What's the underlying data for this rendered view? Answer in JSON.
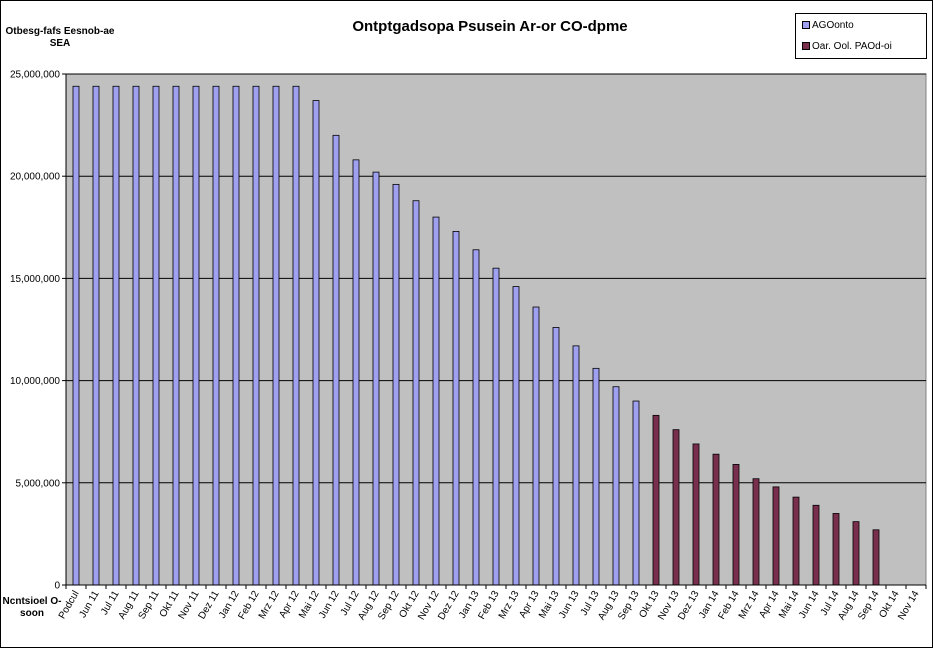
{
  "chart_data": {
    "type": "bar",
    "title": "Ontptgadsopa Psusein Ar-or CO-dpme",
    "ylabel": "Otbesg-fafs Eesnob-ae SEA",
    "xlabel": "Ncntsioel O-soon",
    "ylim": [
      0,
      25000000
    ],
    "yticks": [
      0,
      5000000,
      10000000,
      15000000,
      20000000,
      25000000
    ],
    "ytick_labels": [
      "0",
      "5,000,000",
      "10,000,000",
      "15,000,000",
      "20,000,000",
      "25,000,000"
    ],
    "grid": true,
    "legend_position": "top-right",
    "categories": [
      "Podcul",
      "Jun 11",
      "Jul 11",
      "Aug 11",
      "Sep 11",
      "Okt 11",
      "Nov 11",
      "Dez 11",
      "Jan 12",
      "Feb 12",
      "Mrz 12",
      "Apr 12",
      "Mai 12",
      "Jun 12",
      "Jul 12",
      "Aug 12",
      "Sep 12",
      "Okt 12",
      "Nov 12",
      "Dez 12",
      "Jan 13",
      "Feb 13",
      "Mrz 13",
      "Apr 13",
      "Mai 13",
      "Jun 13",
      "Jul 13",
      "Aug 13",
      "Sep 13",
      "Okt 13",
      "Nov 13",
      "Dez 13",
      "Jan 14",
      "Feb 14",
      "Mrz 14",
      "Apr 14",
      "Mai 14",
      "Jun 14",
      "Jul 14",
      "Aug 14",
      "Sep 14",
      "Okt 14",
      "Nov 14"
    ],
    "series": [
      {
        "name": "AGOonto",
        "color": "#a0a0f0",
        "values": [
          24400000,
          24400000,
          24400000,
          24400000,
          24400000,
          24400000,
          24400000,
          24400000,
          24400000,
          24400000,
          24400000,
          24400000,
          23700000,
          22000000,
          20800000,
          20200000,
          19600000,
          18800000,
          18000000,
          17300000,
          16400000,
          15500000,
          14600000,
          13600000,
          12600000,
          11700000,
          10600000,
          9700000,
          9000000,
          null,
          null,
          null,
          null,
          null,
          null,
          null,
          null,
          null,
          null,
          null,
          null,
          null,
          null
        ]
      },
      {
        "name": "Oar. Ool. PAOd-oi",
        "color": "#7a2e4e",
        "values": [
          null,
          null,
          null,
          null,
          null,
          null,
          null,
          null,
          null,
          null,
          null,
          null,
          null,
          null,
          null,
          null,
          null,
          null,
          null,
          null,
          null,
          null,
          null,
          null,
          null,
          null,
          null,
          null,
          null,
          8300000,
          7600000,
          6900000,
          6400000,
          5900000,
          5200000,
          4800000,
          4300000,
          3900000,
          3500000,
          3100000,
          2700000,
          null,
          null
        ]
      }
    ]
  },
  "colors": {
    "plot_background": "#c0c0c0",
    "gridline": "#000000"
  }
}
